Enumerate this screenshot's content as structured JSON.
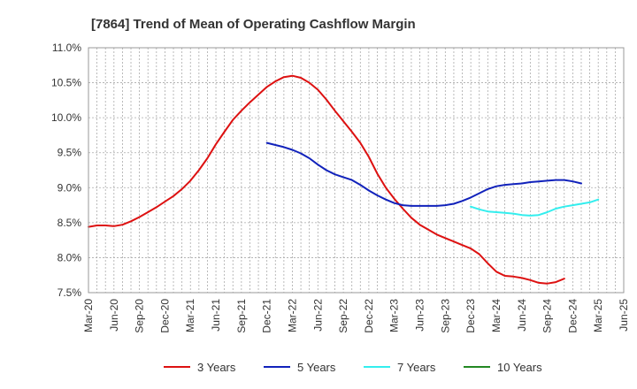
{
  "chart_data": {
    "type": "line",
    "title": "[7864]  Trend of Mean of Operating Cashflow Margin",
    "xlabel": "",
    "ylabel": "",
    "ylim": [
      7.5,
      11.0
    ],
    "yticks": [
      7.5,
      8.0,
      8.5,
      9.0,
      9.5,
      10.0,
      10.5,
      11.0
    ],
    "ytick_labels": [
      "7.5%",
      "8.0%",
      "8.5%",
      "9.0%",
      "9.5%",
      "10.0%",
      "10.5%",
      "11.0%"
    ],
    "xtick_labels": [
      "Mar-20",
      "Jun-20",
      "Sep-20",
      "Dec-20",
      "Mar-21",
      "Jun-21",
      "Sep-21",
      "Dec-21",
      "Mar-22",
      "Jun-22",
      "Sep-22",
      "Dec-22",
      "Mar-23",
      "Jun-23",
      "Sep-23",
      "Dec-23",
      "Mar-24",
      "Jun-24",
      "Sep-24",
      "Dec-24",
      "Mar-25",
      "Jun-25"
    ],
    "grid": true,
    "legend_position": "bottom",
    "series": [
      {
        "name": "3 Years",
        "color": "#dd1111",
        "start_month": 0,
        "values": [
          8.44,
          8.46,
          8.46,
          8.45,
          8.47,
          8.52,
          8.58,
          8.65,
          8.72,
          8.8,
          8.88,
          8.98,
          9.1,
          9.25,
          9.42,
          9.62,
          9.8,
          9.97,
          10.1,
          10.22,
          10.33,
          10.44,
          10.52,
          10.58,
          10.6,
          10.57,
          10.5,
          10.4,
          10.26,
          10.1,
          9.95,
          9.8,
          9.64,
          9.44,
          9.2,
          9.0,
          8.84,
          8.7,
          8.57,
          8.47,
          8.4,
          8.33,
          8.28,
          8.23,
          8.18,
          8.13,
          8.05,
          7.92,
          7.8,
          7.74,
          7.73,
          7.71,
          7.68,
          7.64,
          7.63,
          7.65,
          7.7
        ]
      },
      {
        "name": "5 Years",
        "color": "#1122bb",
        "start_month": 21,
        "values": [
          9.64,
          9.61,
          9.58,
          9.54,
          9.49,
          9.42,
          9.33,
          9.25,
          9.19,
          9.15,
          9.11,
          9.04,
          8.96,
          8.89,
          8.83,
          8.78,
          8.75,
          8.74,
          8.74,
          8.74,
          8.74,
          8.75,
          8.77,
          8.81,
          8.86,
          8.92,
          8.98,
          9.02,
          9.04,
          9.05,
          9.06,
          9.08,
          9.09,
          9.1,
          9.11,
          9.11,
          9.09,
          9.06
        ]
      },
      {
        "name": "7 Years",
        "color": "#33eeee",
        "start_month": 45,
        "values": [
          8.73,
          8.69,
          8.66,
          8.65,
          8.64,
          8.63,
          8.61,
          8.6,
          8.61,
          8.65,
          8.7,
          8.73,
          8.75,
          8.77,
          8.79,
          8.83
        ]
      },
      {
        "name": "10 Years",
        "color": "#228822",
        "start_month": 0,
        "values": []
      }
    ]
  }
}
